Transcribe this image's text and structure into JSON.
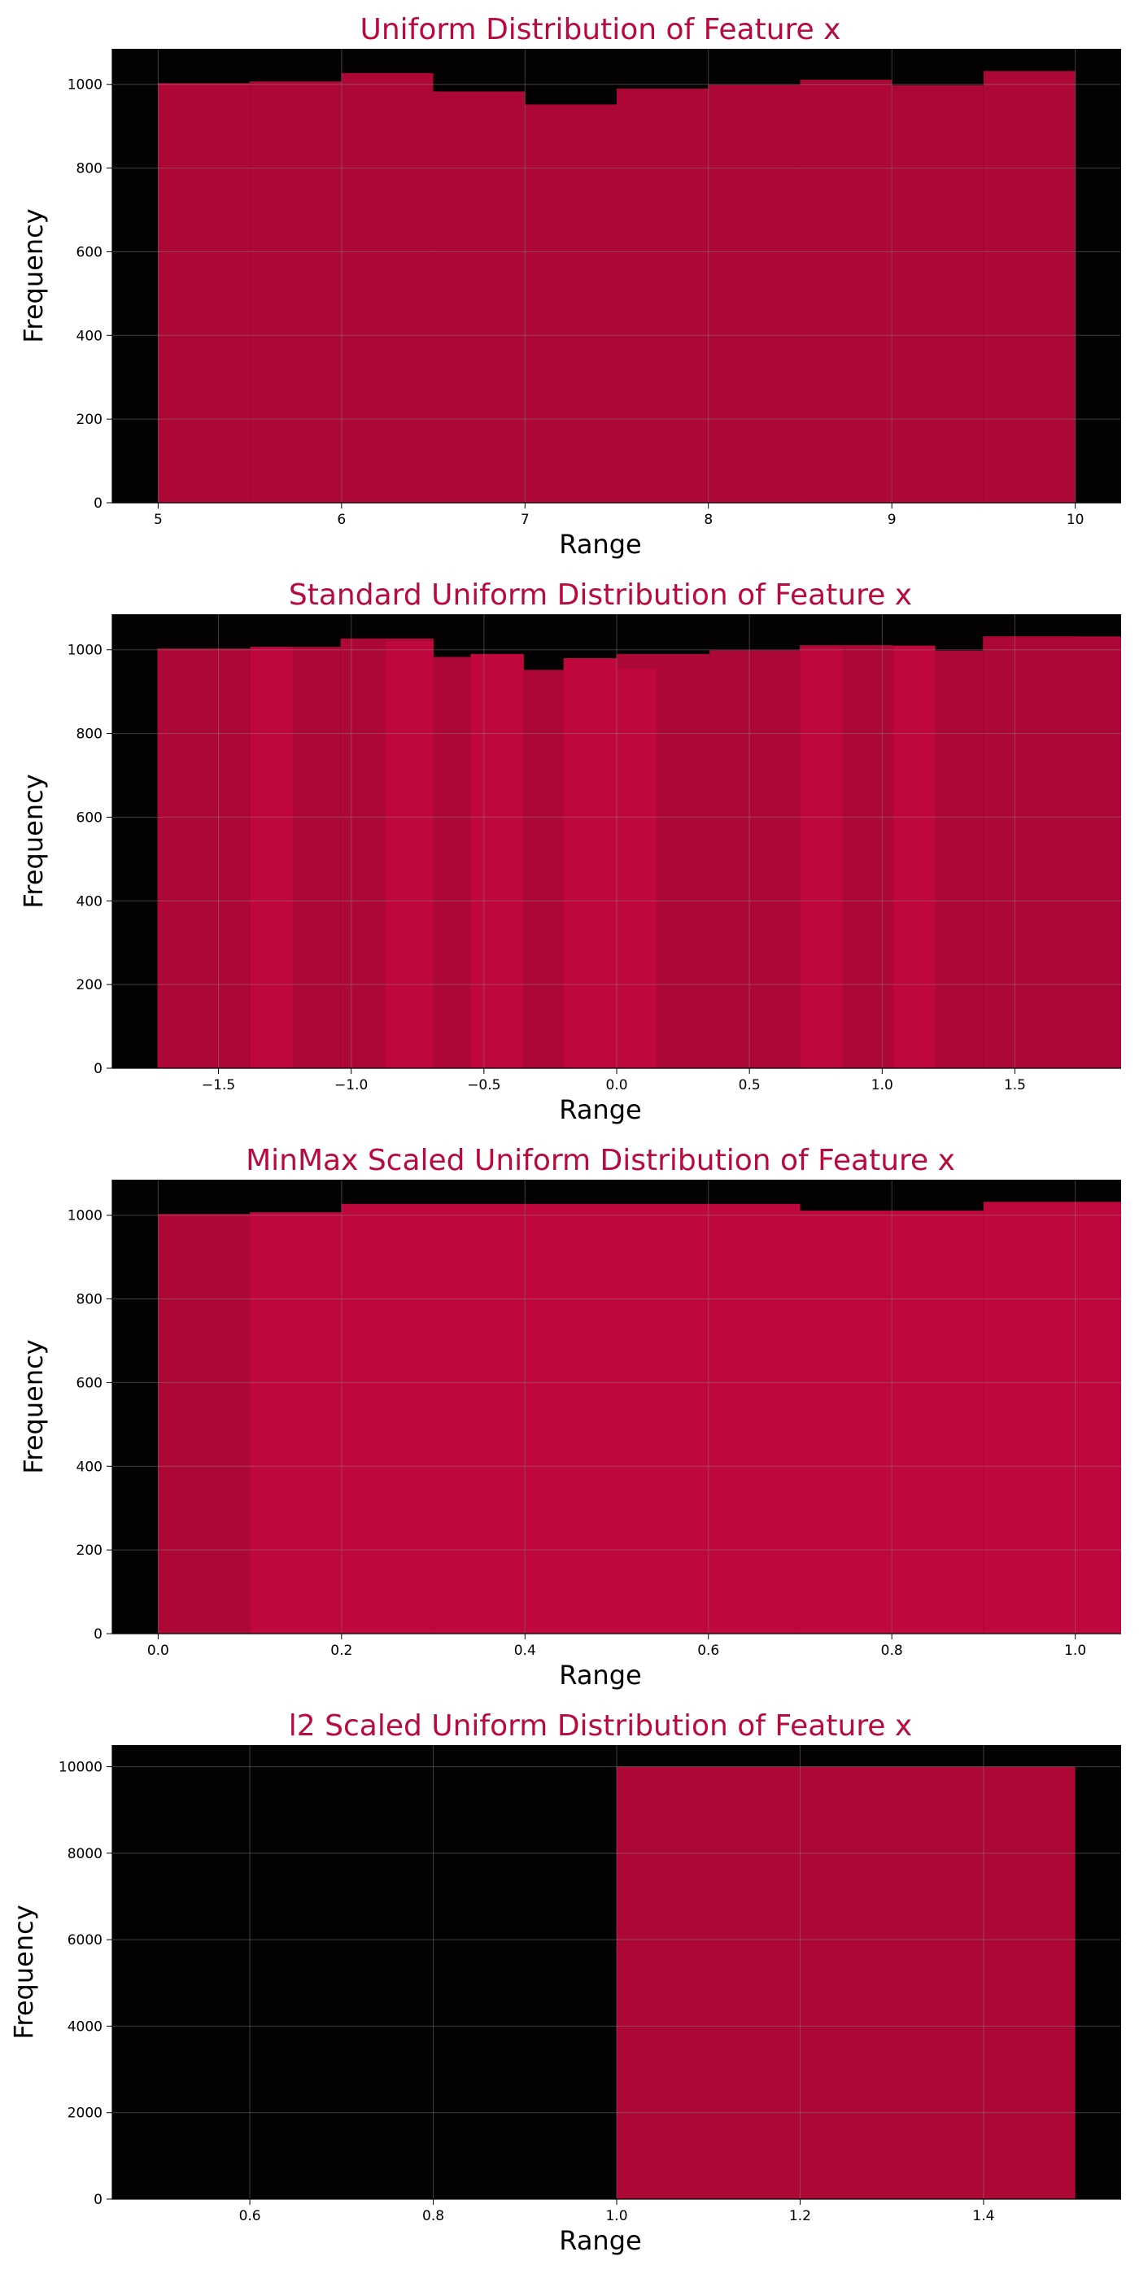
{
  "colors": {
    "bar": "#AD0835",
    "bar_alt": "#C0073D",
    "title": "#B90A3C",
    "plot_bg": "#030102",
    "grid": "#5a5a5a",
    "text": "#000000"
  },
  "chart_data": [
    {
      "type": "bar",
      "title": "Uniform Distribution of Feature x",
      "xlabel": "Range",
      "ylabel": "Frequency",
      "grid": true,
      "xlim": [
        4.75,
        10.25
      ],
      "ylim": [
        0,
        1085
      ],
      "xticks": [
        "5",
        "6",
        "7",
        "8",
        "9",
        "10"
      ],
      "xtick_values": [
        5,
        6,
        7,
        8,
        9,
        10
      ],
      "yticks": [
        "0",
        "200",
        "400",
        "600",
        "800",
        "1000"
      ],
      "ytick_values": [
        0,
        200,
        400,
        600,
        800,
        1000
      ],
      "series": [
        {
          "bins": [
            [
              5.0,
              5.5
            ],
            [
              5.5,
              6.0
            ],
            [
              6.0,
              6.5
            ],
            [
              6.5,
              7.0
            ],
            [
              7.0,
              7.5
            ],
            [
              7.5,
              8.0
            ],
            [
              8.0,
              8.5
            ],
            [
              8.5,
              9.0
            ],
            [
              9.0,
              9.5
            ],
            [
              9.5,
              10.0
            ]
          ],
          "values": [
            1003,
            1007,
            1027,
            983,
            952,
            990,
            999,
            1011,
            998,
            1032
          ],
          "colors": [
            "#AD0835",
            "#AD0835",
            "#AD0835",
            "#AD0835",
            "#AD0835",
            "#AD0835",
            "#AD0835",
            "#AD0835",
            "#AD0835",
            "#AD0835"
          ]
        }
      ]
    },
    {
      "type": "bar",
      "title": "Standard Uniform Distribution of Feature x",
      "xlabel": "Range",
      "ylabel": "Frequency",
      "grid": true,
      "xlim": [
        -1.9,
        1.9
      ],
      "ylim": [
        0,
        1085
      ],
      "xticks": [
        "−1.5",
        "−1.0",
        "−0.5",
        "0.0",
        "0.5",
        "1.0",
        "1.5"
      ],
      "xtick_values": [
        -1.5,
        -1.0,
        -0.5,
        0.0,
        0.5,
        1.0,
        1.5
      ],
      "yticks": [
        "0",
        "200",
        "400",
        "600",
        "800",
        "1000"
      ],
      "ytick_values": [
        0,
        200,
        400,
        600,
        800,
        1000
      ],
      "series": [
        {
          "bins": [
            [
              -1.73,
              -1.38
            ],
            [
              -1.38,
              -1.04
            ],
            [
              -1.04,
              -0.69
            ],
            [
              -0.69,
              -0.35
            ],
            [
              -0.35,
              0.0
            ],
            [
              0.0,
              0.35
            ],
            [
              0.35,
              0.69
            ],
            [
              0.69,
              1.04
            ],
            [
              1.04,
              1.38
            ],
            [
              1.38,
              1.73
            ]
          ],
          "values": [
            1003,
            1007,
            1027,
            983,
            952,
            990,
            999,
            1011,
            998,
            1032
          ],
          "colors": [
            "#AD0835",
            "#AD0835",
            "#AD0835",
            "#AD0835",
            "#AD0835",
            "#AD0835",
            "#AD0835",
            "#AD0835",
            "#AD0835",
            "#AD0835"
          ]
        },
        {
          "bins": [
            [
              -1.38,
              -1.22
            ],
            [
              -0.87,
              -0.69
            ],
            [
              -0.55,
              -0.35
            ],
            [
              -0.2,
              0.0
            ],
            [
              0.0,
              0.15
            ],
            [
              0.35,
              0.69
            ],
            [
              0.69,
              0.85
            ],
            [
              1.04,
              1.2
            ],
            [
              1.38,
              1.9
            ]
          ],
          "values": [
            1007,
            1020,
            990,
            980,
            955,
            995,
            1005,
            1010,
            1032
          ],
          "colors": [
            "#C0073D",
            "#C0073D",
            "#C0073D",
            "#C0073D",
            "#C0073D",
            "#AD0835",
            "#C0073D",
            "#C0073D",
            "#AD0835"
          ]
        }
      ]
    },
    {
      "type": "bar",
      "title": "MinMax Scaled Uniform Distribution of Feature x",
      "xlabel": "Range",
      "ylabel": "Frequency",
      "grid": true,
      "xlim": [
        -0.05,
        1.05
      ],
      "ylim": [
        0,
        1085
      ],
      "xticks": [
        "0.0",
        "0.2",
        "0.4",
        "0.6",
        "0.8",
        "1.0"
      ],
      "xtick_values": [
        0.0,
        0.2,
        0.4,
        0.6,
        0.8,
        1.0
      ],
      "yticks": [
        "0",
        "200",
        "400",
        "600",
        "800",
        "1000"
      ],
      "ytick_values": [
        0,
        200,
        400,
        600,
        800,
        1000
      ],
      "series": [
        {
          "bins": [
            [
              0.0,
              0.1
            ],
            [
              0.1,
              0.2
            ],
            [
              0.2,
              0.3
            ],
            [
              0.3,
              0.4
            ],
            [
              0.4,
              0.5
            ],
            [
              0.5,
              0.6
            ],
            [
              0.6,
              0.7
            ],
            [
              0.7,
              0.8
            ],
            [
              0.8,
              0.9
            ],
            [
              0.9,
              1.05
            ]
          ],
          "values": [
            1003,
            1007,
            1027,
            1027,
            1027,
            1027,
            1027,
            1011,
            1011,
            1032
          ],
          "colors": [
            "#AD0835",
            "#C0073D",
            "#C0073D",
            "#C0073D",
            "#C0073D",
            "#C0073D",
            "#C0073D",
            "#C0073D",
            "#C0073D",
            "#C0073D"
          ]
        }
      ]
    },
    {
      "type": "bar",
      "title": "l2 Scaled Uniform Distribution of Feature x",
      "xlabel": "Range",
      "ylabel": "Frequency",
      "grid": true,
      "xlim": [
        0.45,
        1.55
      ],
      "ylim": [
        0,
        10500
      ],
      "xticks": [
        "0.6",
        "0.8",
        "1.0",
        "1.2",
        "1.4"
      ],
      "xtick_values": [
        0.6,
        0.8,
        1.0,
        1.2,
        1.4
      ],
      "yticks": [
        "0",
        "2000",
        "4000",
        "6000",
        "8000",
        "10000"
      ],
      "ytick_values": [
        0,
        2000,
        4000,
        6000,
        8000,
        10000
      ],
      "series": [
        {
          "bins": [
            [
              1.0,
              1.5
            ]
          ],
          "values": [
            10000
          ],
          "colors": [
            "#AD0835"
          ]
        }
      ]
    }
  ]
}
